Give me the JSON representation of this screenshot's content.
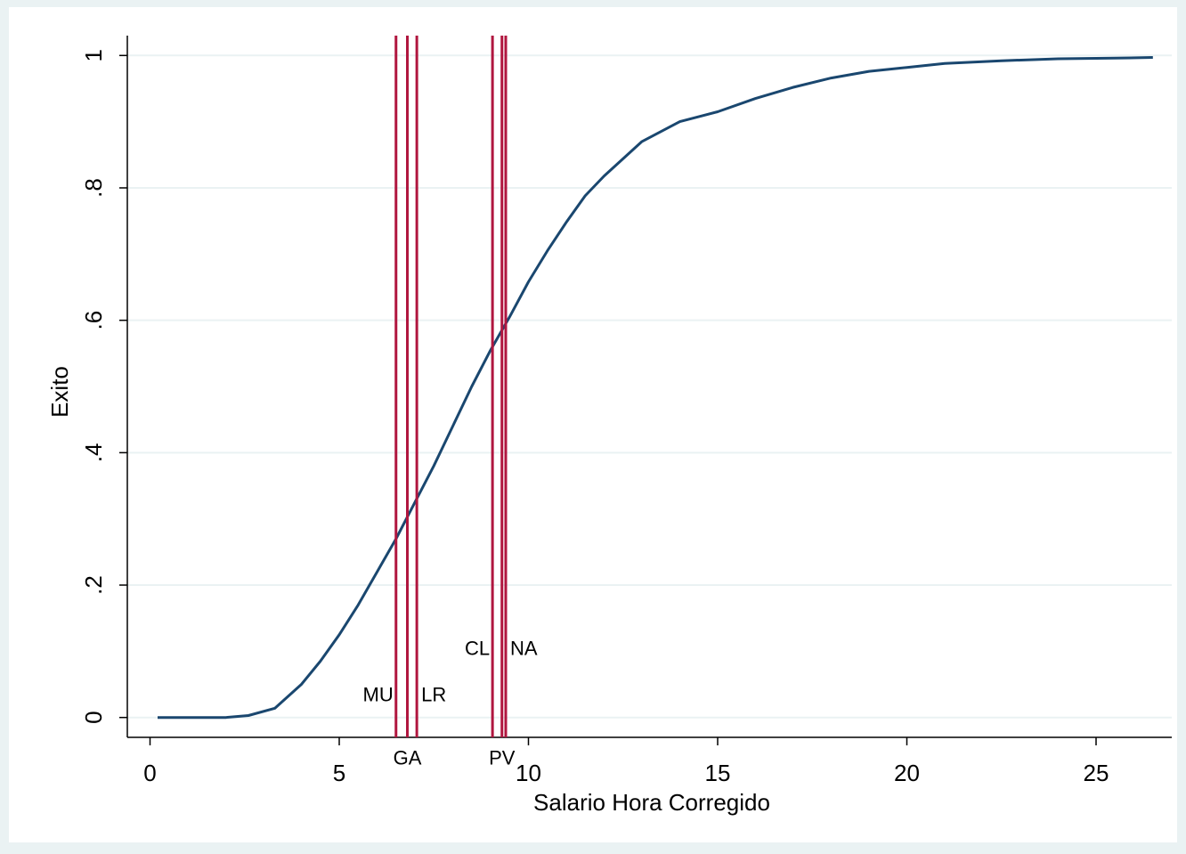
{
  "chart_data": {
    "type": "line",
    "title": "",
    "xlabel": "Salario Hora Corregido",
    "ylabel": "Exito",
    "xlim": [
      -0.6,
      27
    ],
    "ylim": [
      -0.03,
      1.03
    ],
    "x_ticks": [
      0,
      5,
      10,
      15,
      20,
      25
    ],
    "x_tick_labels": [
      "0",
      "5",
      "10",
      "15",
      "20",
      "25"
    ],
    "y_ticks": [
      0,
      0.2,
      0.4,
      0.6,
      0.8,
      1
    ],
    "y_tick_labels": [
      "0",
      ".2",
      ".4",
      ".6",
      ".8",
      "1"
    ],
    "grid": "horizontal",
    "legend": "none",
    "series": [
      {
        "color": "#1a476f",
        "x": [
          0.2,
          1,
          2,
          2.6,
          3.3,
          4,
          4.5,
          5,
          5.5,
          6,
          6.5,
          7,
          7.5,
          8,
          8.5,
          9,
          9.5,
          10,
          10.5,
          11,
          11.5,
          12,
          13,
          14,
          15,
          16,
          17,
          18,
          19,
          20,
          21,
          22.5,
          24,
          25.5,
          26.5
        ],
        "y": [
          0,
          0,
          0,
          0.003,
          0.014,
          0.05,
          0.085,
          0.125,
          0.17,
          0.22,
          0.27,
          0.325,
          0.38,
          0.44,
          0.5,
          0.555,
          0.605,
          0.658,
          0.705,
          0.748,
          0.788,
          0.818,
          0.87,
          0.9,
          0.915,
          0.935,
          0.952,
          0.966,
          0.976,
          0.982,
          0.988,
          0.992,
          0.995,
          0.996,
          0.997
        ]
      }
    ],
    "reference_lines": [
      {
        "x": 6.5,
        "label": "MU",
        "label_y": 0.035,
        "label_anchor": "end",
        "color": "#b0163f"
      },
      {
        "x": 6.8,
        "label": "GA",
        "label_y": -0.06,
        "label_anchor": "middle",
        "color": "#b0163f"
      },
      {
        "x": 7.05,
        "label": "LR",
        "label_y": 0.035,
        "label_anchor": "start",
        "color": "#b0163f"
      },
      {
        "x": 9.05,
        "label": "CL",
        "label_y": 0.105,
        "label_anchor": "end",
        "color": "#b0163f"
      },
      {
        "x": 9.3,
        "label": "PV",
        "label_y": -0.06,
        "label_anchor": "middle",
        "color": "#b0163f"
      },
      {
        "x": 9.4,
        "label": "NA",
        "label_y": 0.105,
        "label_anchor": "start",
        "color": "#b0163f"
      }
    ]
  }
}
